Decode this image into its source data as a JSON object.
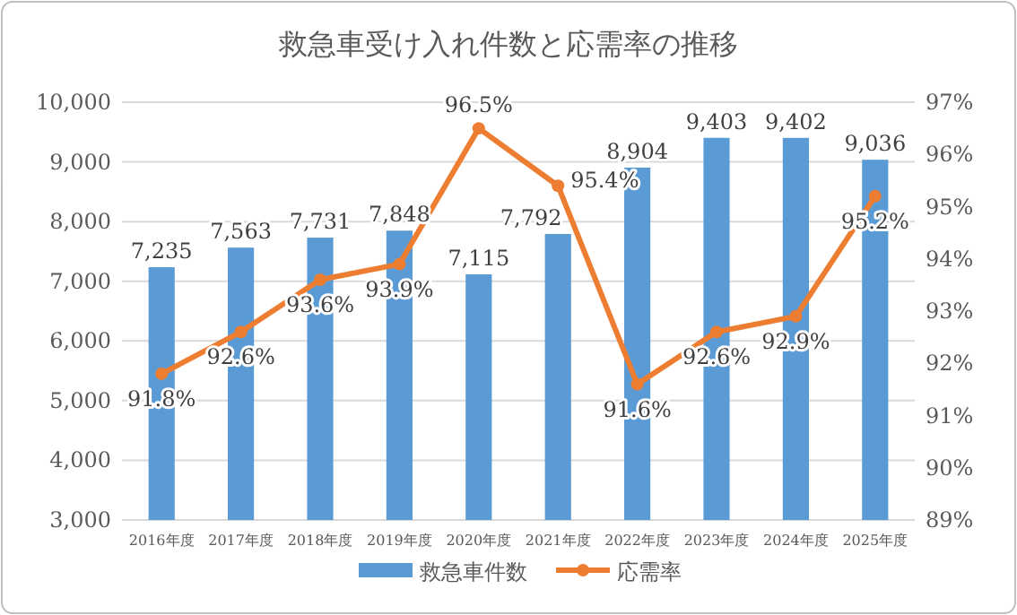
{
  "chart_data": {
    "type": "bar",
    "title": "救急車受け入れ件数と応需率の推移",
    "categories": [
      "2016年度",
      "2017年度",
      "2018年度",
      "2019年度",
      "2020年度",
      "2021年度",
      "2022年度",
      "2023年度",
      "2024年度",
      "2025年度"
    ],
    "series": [
      {
        "name": "救急車件数",
        "type": "bar",
        "color": "#5b9bd5",
        "values": [
          7235,
          7563,
          7731,
          7848,
          7115,
          7792,
          8904,
          9403,
          9402,
          9036
        ],
        "value_labels": [
          "7,235",
          "7,563",
          "7,731",
          "7,848",
          "7,115",
          "7,792",
          "8,904",
          "9,403",
          "9,402",
          "9,036"
        ]
      },
      {
        "name": "応需率",
        "type": "line",
        "axis": "y2",
        "color": "#ed7d31",
        "marker": "circle",
        "values": [
          91.8,
          92.6,
          93.6,
          93.9,
          96.5,
          95.4,
          91.6,
          92.6,
          92.9,
          95.2
        ],
        "value_labels": [
          "91.8%",
          "92.6%",
          "93.6%",
          "93.9%",
          "96.5%",
          "95.4%",
          "91.6%",
          "92.6%",
          "92.9%",
          "95.2%"
        ]
      }
    ],
    "ylim": [
      3000,
      10000
    ],
    "yticks": [
      {
        "value": 3000,
        "label": "3,000"
      },
      {
        "value": 4000,
        "label": "4,000"
      },
      {
        "value": 5000,
        "label": "5,000"
      },
      {
        "value": 6000,
        "label": "6,000"
      },
      {
        "value": 7000,
        "label": "7,000"
      },
      {
        "value": 8000,
        "label": "8,000"
      },
      {
        "value": 9000,
        "label": "9,000"
      },
      {
        "value": 10000,
        "label": "10,000"
      }
    ],
    "y2lim": [
      89,
      97
    ],
    "y2ticks": [
      {
        "value": 89,
        "label": "89%"
      },
      {
        "value": 90,
        "label": "90%"
      },
      {
        "value": 91,
        "label": "91%"
      },
      {
        "value": 92,
        "label": "92%"
      },
      {
        "value": 93,
        "label": "93%"
      },
      {
        "value": 94,
        "label": "94%"
      },
      {
        "value": 95,
        "label": "95%"
      },
      {
        "value": 96,
        "label": "96%"
      },
      {
        "value": 97,
        "label": "97%"
      }
    ],
    "grid": "y",
    "legend": "bottom"
  }
}
